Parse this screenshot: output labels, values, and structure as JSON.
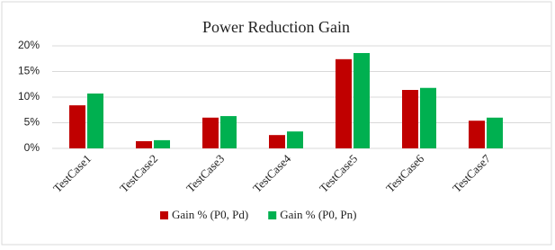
{
  "chart_data": {
    "type": "bar",
    "title": "Power Reduction Gain",
    "categories": [
      "TestCase1",
      "TestCase2",
      "TestCase3",
      "TestCase4",
      "TestCase5",
      "TestCase6",
      "TestCase7"
    ],
    "series": [
      {
        "name": "Gain % (P0, Pd)",
        "color": "#c00000",
        "values": [
          8.4,
          1.4,
          6.0,
          2.6,
          17.4,
          11.4,
          5.4
        ]
      },
      {
        "name": "Gain % (P0, Pn)",
        "color": "#00b050",
        "values": [
          10.7,
          1.6,
          6.3,
          3.3,
          18.6,
          11.8,
          6.0
        ]
      }
    ],
    "ylim": [
      0,
      20
    ],
    "yticks": [
      {
        "value": 0,
        "label": "0%"
      },
      {
        "value": 5,
        "label": "5%"
      },
      {
        "value": 10,
        "label": "10%"
      },
      {
        "value": 15,
        "label": "15%"
      },
      {
        "value": 20,
        "label": "20%"
      }
    ],
    "grid": true,
    "legend": "bottom"
  }
}
